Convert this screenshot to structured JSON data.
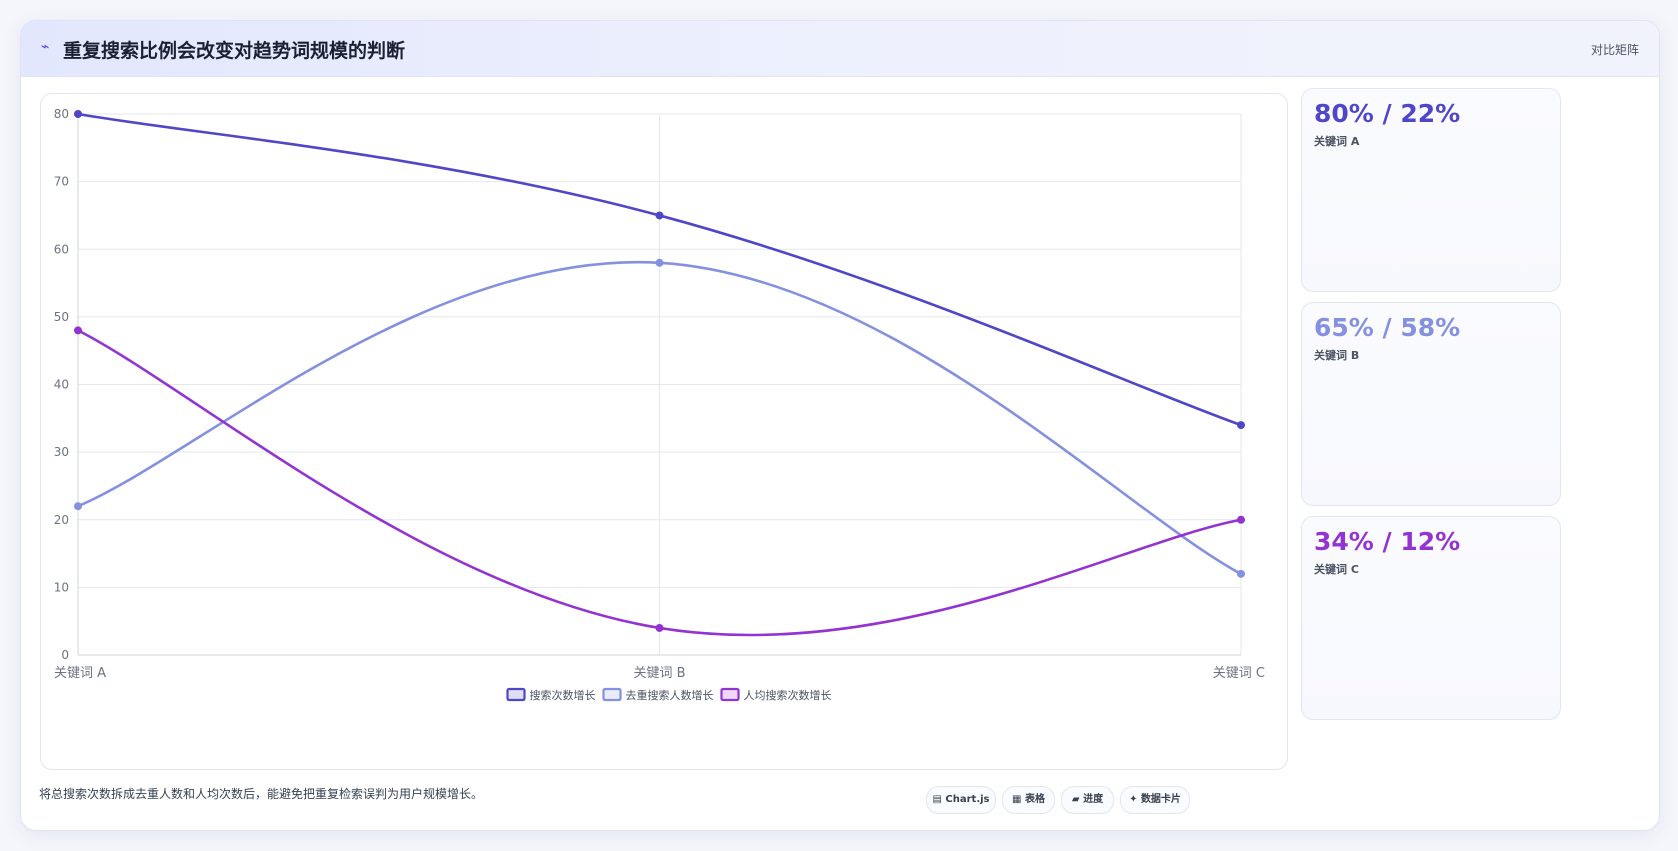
{
  "header": {
    "icon": "chart-line-icon",
    "title": "重复搜索比例会改变对趋势词规模的判断",
    "tag": "对比矩阵"
  },
  "chart_data": {
    "type": "line",
    "categories": [
      "关键词 A",
      "关键词 B",
      "关键词 C"
    ],
    "ylim": [
      0,
      80
    ],
    "yticks": [
      0,
      10,
      20,
      30,
      40,
      50,
      60,
      70,
      80
    ],
    "grid": true,
    "legend_position": "bottom",
    "series": [
      {
        "name": "搜索次数增长",
        "values": [
          80,
          65,
          34
        ],
        "color": "#4f46c8"
      },
      {
        "name": "去重搜索人数增长",
        "values": [
          22,
          58,
          12
        ],
        "color": "#8490e0"
      },
      {
        "name": "人均搜索次数增长",
        "values": [
          48,
          4,
          20
        ],
        "color": "#9333d1"
      }
    ]
  },
  "stats": [
    {
      "value": "80% / 22%",
      "label": "关键词 A",
      "color": "#4f46c8"
    },
    {
      "value": "65% / 58%",
      "label": "关键词 B",
      "color": "#8490e0"
    },
    {
      "value": "34% / 12%",
      "label": "关键词 C",
      "color": "#9333d1"
    }
  ],
  "footer": {
    "note": "将总搜索次数拆成去重人数和人均次数后，能避免把重复检索误判为用户规模增长。",
    "chips": [
      {
        "icon": "chart-icon",
        "glyph": "▤",
        "label": "Chart.js"
      },
      {
        "icon": "table-icon",
        "glyph": "▦",
        "label": "表格"
      },
      {
        "icon": "progress-icon",
        "glyph": "▰",
        "label": "进度"
      },
      {
        "icon": "sparkle-icon",
        "glyph": "✦",
        "label": "数据卡片"
      }
    ]
  }
}
